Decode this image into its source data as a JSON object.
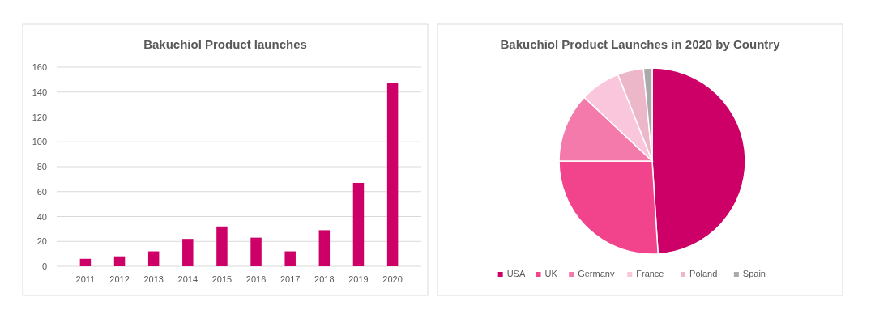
{
  "chart_data": [
    {
      "type": "bar",
      "title": "Bakuchiol Product launches",
      "categories": [
        "2011",
        "2012",
        "2013",
        "2014",
        "2015",
        "2016",
        "2017",
        "2018",
        "2019",
        "2020"
      ],
      "values": [
        6,
        8,
        12,
        22,
        32,
        23,
        12,
        29,
        67,
        147
      ],
      "color": "#cc0066",
      "ylim": [
        0,
        160
      ],
      "yticks": [
        0,
        20,
        40,
        60,
        80,
        100,
        120,
        140,
        160
      ],
      "grid": "y"
    },
    {
      "type": "pie",
      "title": "Bakuchiol Product Launches in 2020 by Country",
      "categories": [
        "USA",
        "UK",
        "Germany",
        "France",
        "Poland",
        "Spain"
      ],
      "values": [
        49,
        26,
        12,
        7,
        4.5,
        1.5
      ],
      "colors": [
        "#cc0066",
        "#f2448c",
        "#f47aac",
        "#f9c6dc",
        "#ecb8c9",
        "#a9aaa9"
      ],
      "legend": "bottom"
    }
  ]
}
